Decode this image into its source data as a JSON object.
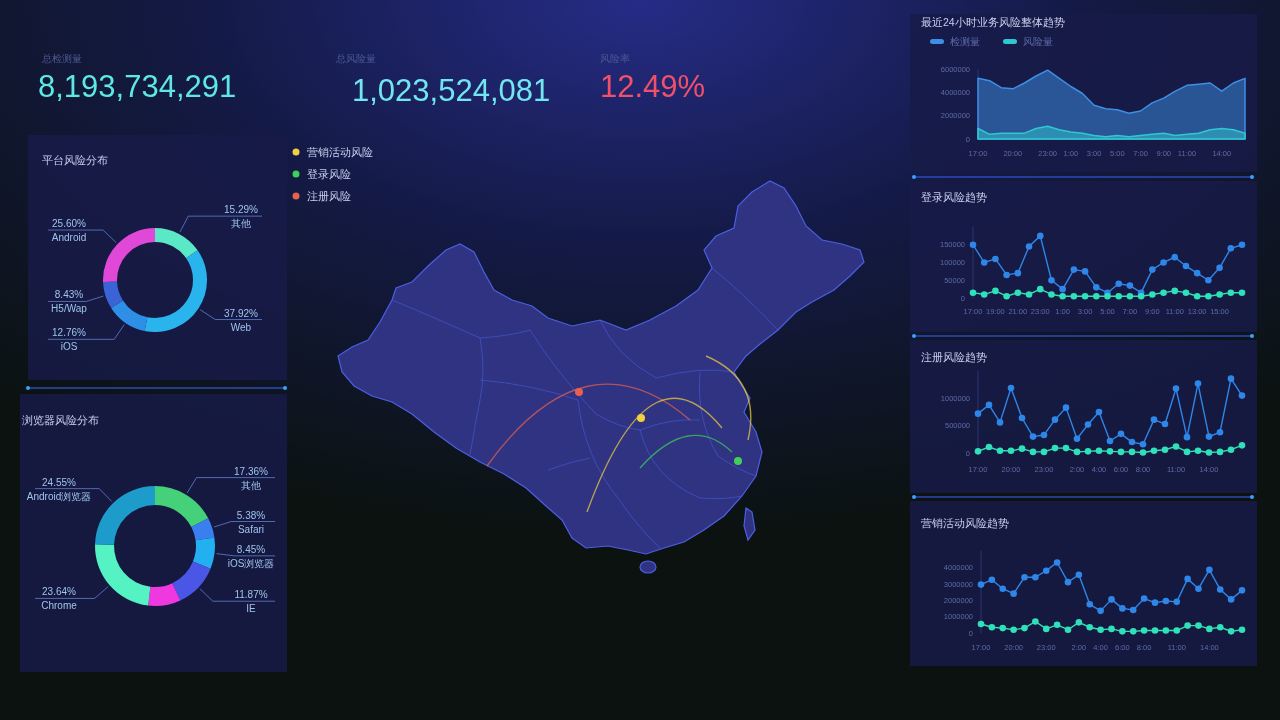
{
  "chart_data": [
    {
      "type": "other",
      "categories": [
        "总检测量",
        "总风险量",
        "风险率"
      ],
      "value_labels": [
        "8,193,734,291",
        "1,023,524,081",
        "12.49%"
      ],
      "colors": [
        "#5ee8e4",
        "#72e6f0",
        "#f0506a"
      ]
    },
    {
      "type": "donut",
      "title": "平台风险分布",
      "categories": [
        "其他",
        "Web",
        "iOS",
        "H5/Wap",
        "Android"
      ],
      "values": [
        15.29,
        37.92,
        12.76,
        8.43,
        25.6
      ],
      "value_labels": [
        "15.29%",
        "37.92%",
        "12.76%",
        "8.43%",
        "25.60%"
      ],
      "colors": [
        "#5ae8c6",
        "#2ab4ee",
        "#2d8fe6",
        "#3a64d6",
        "#e048d8"
      ]
    },
    {
      "type": "donut",
      "title": "浏览器风险分布",
      "categories": [
        "其他",
        "Safari",
        "iOS浏览器",
        "IE",
        null,
        "Chrome",
        "Android浏览器"
      ],
      "values": [
        17.36,
        5.38,
        8.45,
        11.87,
        8.75,
        23.64,
        24.55
      ],
      "value_labels": [
        "17.36%",
        "5.38%",
        "8.45%",
        "11.87%",
        null,
        "23.64%",
        "24.55%"
      ],
      "colors": [
        "#45d07a",
        "#3a7ef0",
        "#22b0f0",
        "#4a56e6",
        "#f038e0",
        "#55f2c4",
        "#1d9ccc"
      ]
    },
    {
      "type": "other",
      "legend": "top left",
      "series": [
        {
          "name": "营销活动风险",
          "color": "#f0d040"
        },
        {
          "name": "登录风险",
          "color": "#3ed05a"
        },
        {
          "name": "注册风险",
          "color": "#e86050"
        }
      ]
    },
    {
      "type": "area",
      "title": "最近24小时业务风险整体趋势",
      "legend": "top left",
      "categories": [
        "17:00",
        null,
        null,
        "20:00",
        null,
        null,
        "23:00",
        null,
        "1:00",
        null,
        "3:00",
        null,
        "5:00",
        null,
        "7:00",
        null,
        "9:00",
        null,
        "11:00",
        null,
        null,
        "14:00",
        null,
        null
      ],
      "series": [
        {
          "name": "检测量",
          "color": "#3d8fe6",
          "values": [
            5200000,
            5000000,
            4400000,
            4300000,
            4800000,
            5400000,
            5900000,
            5200000,
            4500000,
            3900000,
            2900000,
            2600000,
            2500000,
            2200000,
            2400000,
            3100000,
            3500000,
            4100000,
            4600000,
            4700000,
            4800000,
            4100000,
            4800000,
            5200000
          ]
        },
        {
          "name": "风险量",
          "color": "#30c8d0",
          "values": [
            900000,
            400000,
            500000,
            500000,
            500000,
            900000,
            1100000,
            800000,
            600000,
            500000,
            300000,
            200000,
            300000,
            200000,
            300000,
            400000,
            500000,
            300000,
            400000,
            500000,
            800000,
            900000,
            800000,
            500000
          ]
        }
      ],
      "ylim": [
        0,
        6000000
      ],
      "yticks": [
        0,
        2000000,
        4000000,
        6000000
      ]
    },
    {
      "type": "line",
      "title": "登录风险趋势",
      "marker": "circle",
      "categories": [
        "17:00",
        null,
        "19:00",
        null,
        "21:00",
        null,
        "23:00",
        null,
        "1:00",
        null,
        "3:00",
        null,
        "5:00",
        null,
        "7:00",
        null,
        "9:00",
        null,
        "11:00",
        null,
        "13:00",
        null,
        "15:00",
        null,
        null
      ],
      "series": [
        {
          "color": "#2e86e8",
          "values": [
            150000,
            100000,
            110000,
            65000,
            70000,
            145000,
            175000,
            50000,
            25000,
            80000,
            75000,
            30000,
            15000,
            40000,
            35000,
            15000,
            80000,
            100000,
            115000,
            90000,
            70000,
            50000,
            85000,
            140000,
            150000
          ]
        },
        {
          "color": "#2fe0b8",
          "values": [
            15000,
            10000,
            20000,
            5000,
            15000,
            10000,
            25000,
            10000,
            5000,
            5000,
            5000,
            5000,
            5000,
            5000,
            5000,
            5000,
            10000,
            15000,
            20000,
            15000,
            5000,
            5000,
            10000,
            15000,
            15000
          ]
        }
      ],
      "ylim": [
        0,
        200000
      ],
      "yticks": [
        0,
        50000,
        100000,
        150000
      ]
    },
    {
      "type": "line",
      "title": "注册风险趋势",
      "marker": "circle",
      "categories": [
        "17:00",
        null,
        null,
        "20:00",
        null,
        null,
        "23:00",
        null,
        null,
        "2:00",
        null,
        "4:00",
        null,
        "6:00",
        null,
        "8:00",
        null,
        null,
        "11:00",
        null,
        null,
        "14:00",
        null,
        null,
        null
      ],
      "series": [
        {
          "color": "#2e86e8",
          "values": [
            720000,
            880000,
            560000,
            1190000,
            640000,
            300000,
            330000,
            610000,
            830000,
            260000,
            520000,
            750000,
            220000,
            350000,
            200000,
            160000,
            610000,
            530000,
            1180000,
            290000,
            1270000,
            300000,
            380000,
            1360000,
            1050000
          ]
        },
        {
          "color": "#2fe0b8",
          "values": [
            30000,
            110000,
            40000,
            40000,
            80000,
            20000,
            20000,
            90000,
            90000,
            20000,
            30000,
            40000,
            30000,
            20000,
            20000,
            10000,
            40000,
            60000,
            120000,
            20000,
            40000,
            10000,
            20000,
            60000,
            140000
          ]
        }
      ],
      "ylim": [
        0,
        1500000
      ],
      "yticks": [
        0,
        500000,
        1000000
      ]
    },
    {
      "type": "line",
      "title": "营销活动风险趋势",
      "marker": "circle",
      "categories": [
        "17:00",
        null,
        null,
        "20:00",
        null,
        null,
        "23:00",
        null,
        null,
        "2:00",
        null,
        "4:00",
        null,
        "6:00",
        null,
        "8:00",
        null,
        null,
        "11:00",
        null,
        null,
        "14:00",
        null,
        null,
        null
      ],
      "series": [
        {
          "color": "#2e86e8",
          "values": [
            2950000,
            3250000,
            2700000,
            2400000,
            3400000,
            3400000,
            3800000,
            4300000,
            3100000,
            3550000,
            1750000,
            1350000,
            2050000,
            1500000,
            1400000,
            2100000,
            1850000,
            1950000,
            1900000,
            3300000,
            2700000,
            3850000,
            2650000,
            2050000,
            2600000
          ]
        },
        {
          "color": "#2fe0b8",
          "values": [
            550000,
            350000,
            300000,
            200000,
            300000,
            700000,
            250000,
            500000,
            200000,
            650000,
            350000,
            200000,
            250000,
            100000,
            100000,
            150000,
            150000,
            150000,
            150000,
            450000,
            450000,
            250000,
            350000,
            100000,
            200000
          ]
        }
      ],
      "ylim": [
        0,
        5000000
      ],
      "yticks": [
        0,
        1000000,
        2000000,
        3000000,
        4000000
      ]
    }
  ]
}
